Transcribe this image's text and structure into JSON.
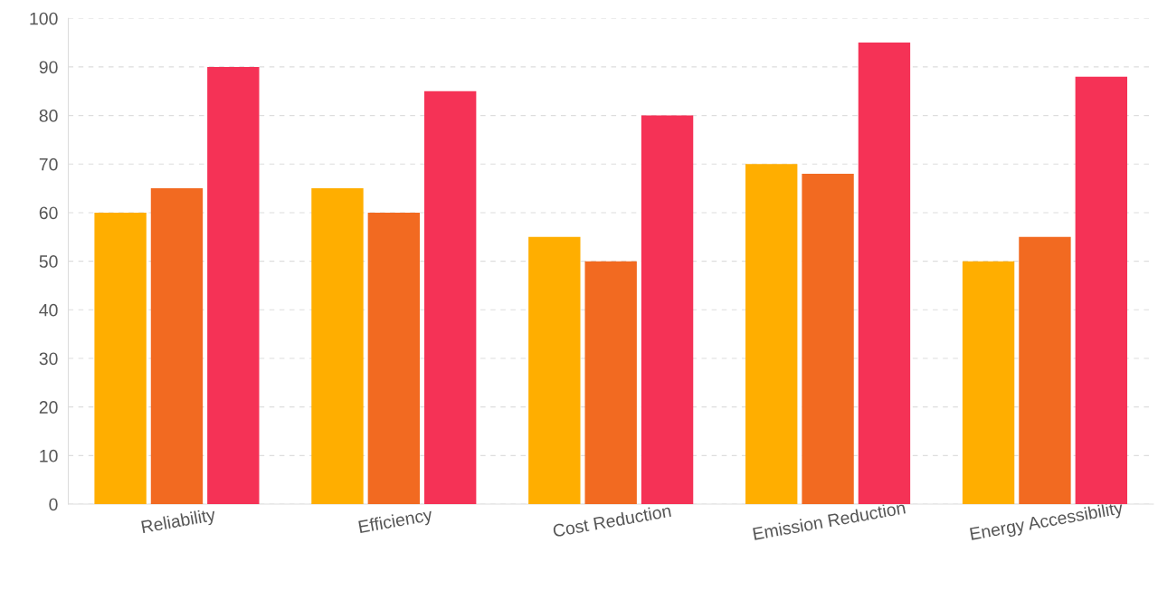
{
  "chart_data": {
    "type": "bar",
    "categories": [
      "Reliability",
      "Efficiency",
      "Cost Reduction",
      "Emission Reduction",
      "Energy Accessibility"
    ],
    "series": [
      {
        "color": "#ffae00",
        "values": [
          60,
          65,
          55,
          70,
          50
        ]
      },
      {
        "color": "#f26a21",
        "values": [
          65,
          60,
          50,
          68,
          55
        ]
      },
      {
        "color": "#f53256",
        "values": [
          90,
          85,
          80,
          95,
          88
        ]
      }
    ],
    "ylim": [
      0,
      100
    ],
    "yticks": [
      0,
      10,
      20,
      30,
      40,
      50,
      60,
      70,
      80,
      90,
      100
    ],
    "grid": "y",
    "legend": false
  }
}
